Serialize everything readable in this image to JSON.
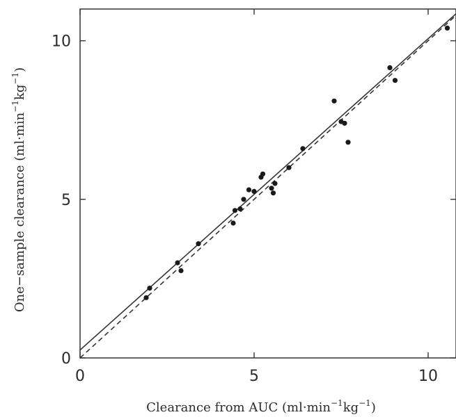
{
  "chart_data": {
    "type": "scatter",
    "xlabel": {
      "base": "Clearance from AUC (ml·min",
      "exp1": "−1",
      "mid": "kg",
      "exp2": "−1",
      "end": ")"
    },
    "ylabel": {
      "base": "One−sample clearance (ml·min",
      "exp1": "−1",
      "mid": "kg",
      "exp2": "−1",
      "end": ")"
    },
    "xlim": [
      0,
      10.8
    ],
    "ylim": [
      0,
      11
    ],
    "xticks": [
      0,
      5,
      10
    ],
    "yticks": [
      0,
      5,
      10
    ],
    "xtick_labels": [
      "0",
      "5",
      "10"
    ],
    "ytick_labels": [
      "0",
      "5",
      "10"
    ],
    "grid": false,
    "colors": {
      "points": "#1a1a1a",
      "lines": "#333333",
      "frame": "#333333"
    },
    "series": [
      {
        "kind": "points",
        "points": [
          [
            1.9,
            1.9
          ],
          [
            2.0,
            2.2
          ],
          [
            2.8,
            3.0
          ],
          [
            2.9,
            2.75
          ],
          [
            3.4,
            3.6
          ],
          [
            4.4,
            4.25
          ],
          [
            4.45,
            4.65
          ],
          [
            4.6,
            4.7
          ],
          [
            4.7,
            5.0
          ],
          [
            4.85,
            5.3
          ],
          [
            5.0,
            5.25
          ],
          [
            5.2,
            5.7
          ],
          [
            5.25,
            5.8
          ],
          [
            5.5,
            5.35
          ],
          [
            5.55,
            5.2
          ],
          [
            5.6,
            5.5
          ],
          [
            6.0,
            6.0
          ],
          [
            6.4,
            6.6
          ],
          [
            7.3,
            8.1
          ],
          [
            7.5,
            7.45
          ],
          [
            7.6,
            7.4
          ],
          [
            7.7,
            6.8
          ],
          [
            8.9,
            9.15
          ],
          [
            9.05,
            8.75
          ],
          [
            10.55,
            10.4
          ]
        ]
      },
      {
        "kind": "regression-line",
        "style": "solid",
        "start": [
          0,
          0.25
        ],
        "end": [
          10.8,
          10.85
        ]
      },
      {
        "kind": "identity-line",
        "style": "dashed",
        "start": [
          0,
          0
        ],
        "end": [
          10.8,
          10.8
        ]
      }
    ]
  }
}
